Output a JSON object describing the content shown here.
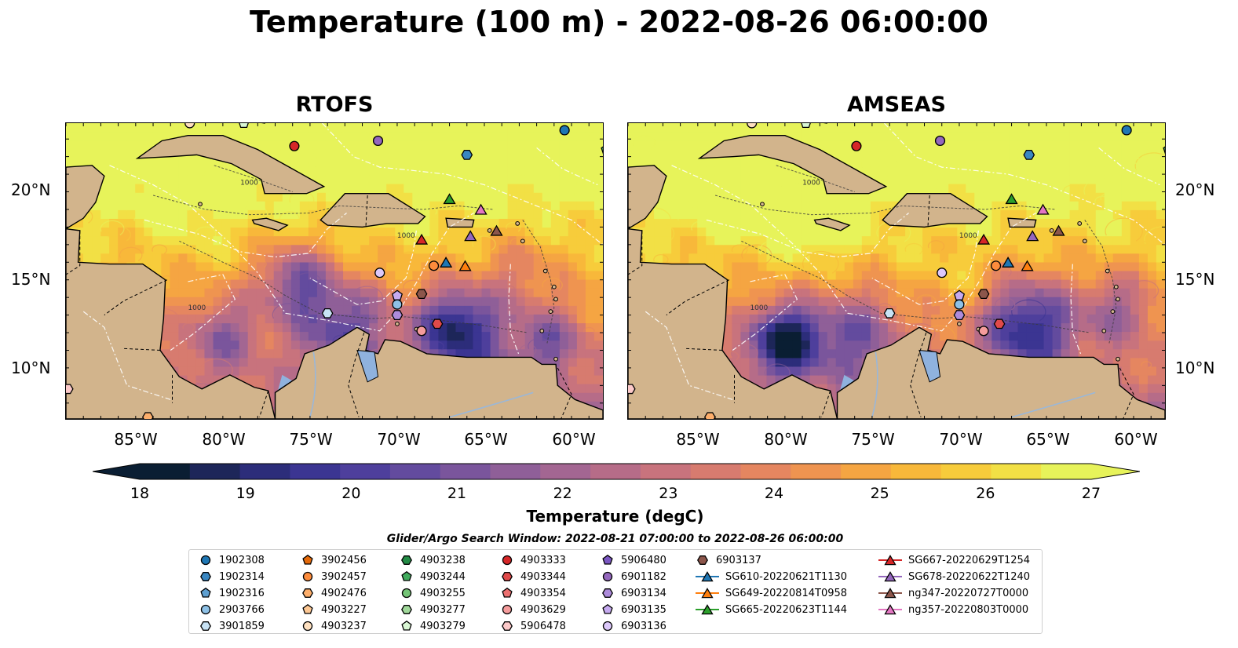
{
  "title": "Temperature (100 m) - 2022-08-26 06:00:00",
  "panels": [
    {
      "name": "RTOFS"
    },
    {
      "name": "AMSEAS"
    }
  ],
  "lat_ticks": [
    "20°N",
    "15°N",
    "10°N"
  ],
  "lon_ticks": [
    "85°W",
    "80°W",
    "75°W",
    "70°W",
    "65°W",
    "60°W"
  ],
  "isobath_label": "1000",
  "colorbar": {
    "label": "Temperature (degC)",
    "ticks": [
      "18",
      "19",
      "20",
      "21",
      "22",
      "23",
      "24",
      "25",
      "26",
      "27"
    ],
    "min": 18,
    "max": 27,
    "colors": [
      "#0a1e33",
      "#1d2659",
      "#2c2d7a",
      "#3b3592",
      "#4e3f9c",
      "#634b9e",
      "#7a559c",
      "#8f5f98",
      "#a36692",
      "#b66c88",
      "#c8737d",
      "#d77b6f",
      "#e58660",
      "#ef9450",
      "#f5a542",
      "#f8b83a",
      "#f7cc3b",
      "#f2e045",
      "#e7f35a"
    ]
  },
  "colors": {
    "land": "#d2b48c",
    "masked_water": "#8fb2de",
    "coast": "#000000",
    "eez": "#ffffff"
  },
  "legend": {
    "title": "Glider/Argo Search Window: 2022-08-21 07:00:00 to 2022-08-26 06:00:00",
    "columns": [
      [
        {
          "label": "1902308",
          "marker": "circle",
          "color": "#1f77b4"
        },
        {
          "label": "1902314",
          "marker": "hexagon",
          "color": "#3a87c2"
        },
        {
          "label": "1902316",
          "marker": "pentagon",
          "color": "#5e9fd0"
        },
        {
          "label": "2903766",
          "marker": "circle",
          "color": "#8ec1e6"
        },
        {
          "label": "3901859",
          "marker": "hexagon",
          "color": "#c8e3f5"
        }
      ],
      [
        {
          "label": "3902456",
          "marker": "pentagon",
          "color": "#e56a0a"
        },
        {
          "label": "3902457",
          "marker": "circle",
          "color": "#fd8c3c"
        },
        {
          "label": "4902476",
          "marker": "hexagon",
          "color": "#fdae6b"
        },
        {
          "label": "4903227",
          "marker": "pentagon",
          "color": "#fdc894"
        },
        {
          "label": "4903237",
          "marker": "circle",
          "color": "#fee0c0"
        }
      ],
      [
        {
          "label": "4903238",
          "marker": "hexagon",
          "color": "#238b45"
        },
        {
          "label": "4903244",
          "marker": "pentagon",
          "color": "#41ab5d"
        },
        {
          "label": "4903255",
          "marker": "circle",
          "color": "#74c476"
        },
        {
          "label": "4903277",
          "marker": "hexagon",
          "color": "#a1d99b"
        },
        {
          "label": "4903279",
          "marker": "pentagon",
          "color": "#d9f7d4"
        }
      ],
      [
        {
          "label": "4903333",
          "marker": "circle",
          "color": "#d62728"
        },
        {
          "label": "4903344",
          "marker": "hexagon",
          "color": "#e04a4a"
        },
        {
          "label": "4903354",
          "marker": "pentagon",
          "color": "#ec7070"
        },
        {
          "label": "4903629",
          "marker": "circle",
          "color": "#f59c9c"
        },
        {
          "label": "5906478",
          "marker": "hexagon",
          "color": "#fcc9c9"
        }
      ],
      [
        {
          "label": "5906480",
          "marker": "pentagon",
          "color": "#7b57c2"
        },
        {
          "label": "6901182",
          "marker": "circle",
          "color": "#9467bd"
        },
        {
          "label": "6903134",
          "marker": "hexagon",
          "color": "#ad8bdb"
        },
        {
          "label": "6903135",
          "marker": "pentagon",
          "color": "#c6aaf0"
        },
        {
          "label": "6903136",
          "marker": "circle",
          "color": "#dcc8fa"
        }
      ],
      [
        {
          "label": "6903137",
          "marker": "hexagon",
          "color": "#8c564b"
        },
        {
          "label": "SG610-20220621T1130",
          "marker": "triangle",
          "color": "#1f77b4"
        },
        {
          "label": "SG649-20220814T0958",
          "marker": "triangle",
          "color": "#ff7f0e"
        },
        {
          "label": "SG665-20220623T1144",
          "marker": "triangle",
          "color": "#2ca02c"
        }
      ],
      [
        {
          "label": "SG667-20220629T1254",
          "marker": "triangle",
          "color": "#d62728"
        },
        {
          "label": "SG678-20220622T1240",
          "marker": "triangle",
          "color": "#9467bd"
        },
        {
          "label": "ng347-20220727T0000",
          "marker": "triangle",
          "color": "#8c564b"
        },
        {
          "label": "ng357-20220803T0000",
          "marker": "triangle",
          "color": "#e377c2"
        }
      ]
    ]
  },
  "platforms": [
    {
      "id": "4903237",
      "lon": -81.9,
      "lat": 23.9,
      "marker": "circle",
      "color": "#fee0c0"
    },
    {
      "id": "4903279",
      "lon": -78.8,
      "lat": 23.9,
      "marker": "pentagon",
      "color": "#d9f7d4"
    },
    {
      "id": "4903333",
      "lon": -75.9,
      "lat": 22.6,
      "marker": "circle",
      "color": "#d62728"
    },
    {
      "id": "6901182",
      "lon": -71.1,
      "lat": 22.9,
      "marker": "circle",
      "color": "#9467bd"
    },
    {
      "id": "1902308",
      "lon": -60.4,
      "lat": 23.5,
      "marker": "circle",
      "color": "#1f77b4"
    },
    {
      "id": "1902314",
      "lon": -66.0,
      "lat": 22.1,
      "marker": "hexagon",
      "color": "#3a87c2"
    },
    {
      "id": "4903244",
      "lon": -58.0,
      "lat": 22.4,
      "marker": "pentagon",
      "color": "#41ab5d"
    },
    {
      "id": "SG665-20220623T1144",
      "lon": -67.0,
      "lat": 19.6,
      "marker": "triangle",
      "color": "#2ca02c"
    },
    {
      "id": "ng357-20220803T0000",
      "lon": -65.2,
      "lat": 19.0,
      "marker": "triangle",
      "color": "#e377c2"
    },
    {
      "id": "ng347-20220727T0000",
      "lon": -64.3,
      "lat": 17.8,
      "marker": "triangle",
      "color": "#8c564b"
    },
    {
      "id": "SG678-20220622T1240",
      "lon": -65.8,
      "lat": 17.5,
      "marker": "triangle",
      "color": "#9467bd"
    },
    {
      "id": "SG667-20220629T1254",
      "lon": -68.6,
      "lat": 17.3,
      "marker": "triangle",
      "color": "#d62728"
    },
    {
      "id": "SG610-20220621T1130",
      "lon": -67.2,
      "lat": 16.0,
      "marker": "triangle",
      "color": "#1f77b4"
    },
    {
      "id": "SG649-20220814T0958",
      "lon": -66.1,
      "lat": 15.8,
      "marker": "triangle",
      "color": "#ff7f0e"
    },
    {
      "id": "3902457",
      "lon": -67.9,
      "lat": 15.8,
      "marker": "circle",
      "color": "#fd8c3c"
    },
    {
      "id": "6903136",
      "lon": -71.0,
      "lat": 15.4,
      "marker": "circle",
      "color": "#dcc8fa"
    },
    {
      "id": "6903135",
      "lon": -70.0,
      "lat": 14.1,
      "marker": "pentagon",
      "color": "#c6aaf0"
    },
    {
      "id": "2903766",
      "lon": -70.0,
      "lat": 13.6,
      "marker": "circle",
      "color": "#8ec1e6"
    },
    {
      "id": "6903137",
      "lon": -68.6,
      "lat": 14.2,
      "marker": "hexagon",
      "color": "#8c564b"
    },
    {
      "id": "6903134",
      "lon": -70.0,
      "lat": 13.0,
      "marker": "hexagon",
      "color": "#ad8bdb"
    },
    {
      "id": "3901859",
      "lon": -74.0,
      "lat": 13.1,
      "marker": "hexagon",
      "color": "#c8e3f5"
    },
    {
      "id": "4903629",
      "lon": -68.6,
      "lat": 12.1,
      "marker": "circle",
      "color": "#f59c9c"
    },
    {
      "id": "4903344",
      "lon": -67.7,
      "lat": 12.5,
      "marker": "hexagon",
      "color": "#e04a4a"
    },
    {
      "id": "5906478",
      "lon": -88.9,
      "lat": 8.8,
      "marker": "hexagon",
      "color": "#fcc9c9"
    },
    {
      "id": "4902476",
      "lon": -84.3,
      "lat": 7.2,
      "marker": "hexagon",
      "color": "#fdae6b"
    }
  ]
}
